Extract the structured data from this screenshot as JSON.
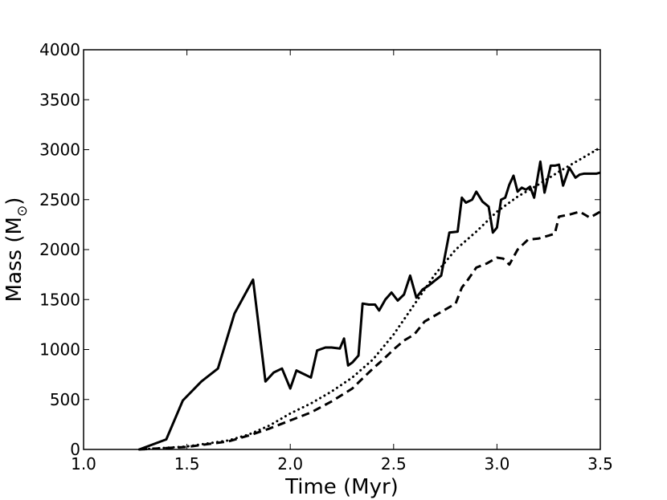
{
  "chart_data": {
    "type": "line",
    "xlabel": "Time (Myr)",
    "ylabel_main": "Mass (M",
    "ylabel_symbol": "⊙",
    "ylabel_close": ")",
    "xlim": [
      1.0,
      3.5
    ],
    "ylim": [
      0,
      4000
    ],
    "xticks": [
      1.0,
      1.5,
      2.0,
      2.5,
      3.0,
      3.5
    ],
    "xtick_labels": [
      "1.0",
      "1.5",
      "2.0",
      "2.5",
      "3.0",
      "3.5"
    ],
    "yticks": [
      0,
      500,
      1000,
      1500,
      2000,
      2500,
      3000,
      3500,
      4000
    ],
    "ytick_labels": [
      "0",
      "500",
      "1000",
      "1500",
      "2000",
      "2500",
      "3000",
      "3500",
      "4000"
    ],
    "grid": false,
    "line_color": "#000000",
    "series": [
      {
        "style": "solid",
        "x": [
          1.27,
          1.4,
          1.48,
          1.57,
          1.65,
          1.73,
          1.82,
          1.88,
          1.92,
          1.96,
          2.0,
          2.03,
          2.07,
          2.1,
          2.13,
          2.17,
          2.2,
          2.24,
          2.26,
          2.28,
          2.3,
          2.33,
          2.35,
          2.38,
          2.41,
          2.43,
          2.46,
          2.49,
          2.52,
          2.55,
          2.58,
          2.61,
          2.64,
          2.67,
          2.7,
          2.73,
          2.77,
          2.81,
          2.83,
          2.85,
          2.88,
          2.9,
          2.93,
          2.96,
          2.98,
          3.0,
          3.02,
          3.04,
          3.06,
          3.08,
          3.1,
          3.12,
          3.14,
          3.16,
          3.18,
          3.21,
          3.23,
          3.26,
          3.28,
          3.3,
          3.32,
          3.35,
          3.38,
          3.4,
          3.42,
          3.44,
          3.46,
          3.48,
          3.5
        ],
        "y": [
          0,
          100,
          490,
          680,
          810,
          1360,
          1700,
          680,
          770,
          810,
          610,
          790,
          750,
          720,
          990,
          1020,
          1020,
          1010,
          1110,
          840,
          870,
          940,
          1460,
          1450,
          1450,
          1390,
          1500,
          1570,
          1490,
          1550,
          1740,
          1520,
          1600,
          1640,
          1690,
          1740,
          2170,
          2180,
          2520,
          2470,
          2500,
          2580,
          2480,
          2430,
          2170,
          2220,
          2500,
          2520,
          2650,
          2740,
          2580,
          2620,
          2600,
          2630,
          2520,
          2880,
          2570,
          2840,
          2840,
          2850,
          2640,
          2820,
          2720,
          2750,
          2760,
          2760,
          2760,
          2760,
          2770
        ]
      },
      {
        "style": "dotted",
        "x": [
          1.27,
          1.5,
          1.7,
          1.8,
          1.9,
          2.0,
          2.1,
          2.2,
          2.3,
          2.4,
          2.5,
          2.6,
          2.7,
          2.8,
          2.9,
          3.0,
          3.1,
          3.2,
          3.3,
          3.4,
          3.5
        ],
        "y": [
          0,
          30,
          90,
          150,
          240,
          360,
          460,
          580,
          720,
          900,
          1150,
          1450,
          1750,
          2000,
          2180,
          2380,
          2530,
          2650,
          2780,
          2900,
          3020
        ]
      },
      {
        "style": "dashed",
        "x": [
          1.27,
          1.5,
          1.7,
          1.8,
          1.9,
          2.0,
          2.1,
          2.2,
          2.3,
          2.35,
          2.4,
          2.45,
          2.5,
          2.55,
          2.6,
          2.65,
          2.7,
          2.75,
          2.8,
          2.83,
          2.86,
          2.9,
          2.95,
          3.0,
          3.03,
          3.06,
          3.1,
          3.15,
          3.2,
          3.25,
          3.28,
          3.3,
          3.35,
          3.4,
          3.45,
          3.5
        ],
        "y": [
          0,
          25,
          80,
          140,
          210,
          290,
          370,
          480,
          610,
          710,
          810,
          900,
          1000,
          1090,
          1150,
          1280,
          1340,
          1400,
          1460,
          1620,
          1700,
          1820,
          1860,
          1920,
          1910,
          1850,
          2000,
          2100,
          2110,
          2140,
          2160,
          2330,
          2350,
          2380,
          2320,
          2380
        ]
      }
    ]
  }
}
